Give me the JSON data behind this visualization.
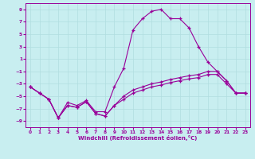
{
  "background_color": "#c8eef0",
  "line_color": "#990099",
  "xlabel": "Windchill (Refroidissement éolien,°C)",
  "xlim": [
    -0.5,
    23.5
  ],
  "ylim": [
    -10,
    10
  ],
  "yticks": [
    -9,
    -7,
    -5,
    -3,
    -1,
    1,
    3,
    5,
    7,
    9
  ],
  "xticks": [
    0,
    1,
    2,
    3,
    4,
    5,
    6,
    7,
    8,
    9,
    10,
    11,
    12,
    13,
    14,
    15,
    16,
    17,
    18,
    19,
    20,
    21,
    22,
    23
  ],
  "curve1_x": [
    0,
    1,
    2,
    3,
    4,
    5,
    6,
    7,
    8,
    9,
    10,
    11,
    12,
    13,
    14,
    15,
    16,
    17,
    18,
    19,
    20,
    21,
    22,
    23
  ],
  "curve1_y": [
    -3.5,
    -4.5,
    -5.5,
    -8.5,
    -6.0,
    -6.5,
    -5.7,
    -7.5,
    -7.5,
    -3.5,
    -0.5,
    5.7,
    7.5,
    8.7,
    9.0,
    7.5,
    7.5,
    6.0,
    3.0,
    0.5,
    -1.0,
    -2.5,
    -4.5,
    -4.5
  ],
  "curve2_x": [
    0,
    1,
    2,
    3,
    4,
    5,
    6,
    7,
    8,
    9,
    10,
    11,
    12,
    13,
    14,
    15,
    16,
    17,
    18,
    19,
    20,
    21,
    22,
    23
  ],
  "curve2_y": [
    -3.5,
    -4.5,
    -5.5,
    -8.5,
    -6.5,
    -6.8,
    -5.9,
    -7.8,
    -8.2,
    -6.5,
    -5.0,
    -4.0,
    -3.5,
    -3.0,
    -2.7,
    -2.3,
    -2.0,
    -1.7,
    -1.5,
    -1.0,
    -1.0,
    -2.5,
    -4.5,
    -4.5
  ],
  "curve3_x": [
    0,
    1,
    2,
    3,
    4,
    5,
    6,
    7,
    8,
    9,
    10,
    11,
    12,
    13,
    14,
    15,
    16,
    17,
    18,
    19,
    20,
    21,
    22,
    23
  ],
  "curve3_y": [
    -3.5,
    -4.5,
    -5.5,
    -8.5,
    -6.5,
    -6.8,
    -5.9,
    -7.8,
    -8.2,
    -6.5,
    -5.5,
    -4.5,
    -4.0,
    -3.5,
    -3.2,
    -2.8,
    -2.5,
    -2.2,
    -2.0,
    -1.5,
    -1.5,
    -3.0,
    -4.5,
    -4.5
  ]
}
